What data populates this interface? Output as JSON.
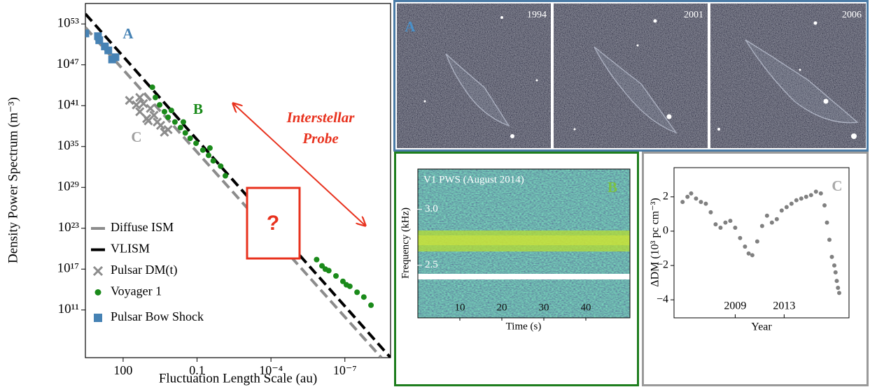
{
  "chart_data": [
    {
      "type": "scatter",
      "xlabel": "Fluctuation Length Scale (au)",
      "ylabel": "Density Power Spectrum (m⁻³)",
      "xlog": true,
      "ylog": true,
      "xlim": [
        3400,
        1.4e-09
      ],
      "ylim": [
        10000.0,
        1e+56
      ],
      "xticks": [
        100,
        0.1,
        {
          "value": 0.0001,
          "label": "10⁻⁴"
        },
        {
          "value": 1e-07,
          "label": "10⁻⁷"
        }
      ],
      "yticks": [
        {
          "value": 100000000000.0,
          "label": "10¹¹"
        },
        {
          "value": 1e+17,
          "label": "10¹⁷"
        },
        {
          "value": 1e+23,
          "label": "10²³"
        },
        {
          "value": 1e+29,
          "label": "10²⁹"
        },
        {
          "value": 1e+35,
          "label": "10³⁵"
        },
        {
          "value": 1e+41,
          "label": "10⁴¹"
        },
        {
          "value": 1e+47,
          "label": "10⁴⁷"
        },
        {
          "value": 1e+53,
          "label": "10⁵³"
        }
      ],
      "legend": "lower left",
      "lines": [
        {
          "name": "Diffuse ISM",
          "color": "#8c8c8c",
          "x": [
            3400,
            3.3e-09
          ],
          "values": [
            3e+52,
            10000.0
          ]
        },
        {
          "name": "VLISM",
          "color": "#000000",
          "x": [
            3400,
            1.4e-09
          ],
          "values": [
            3e+54,
            10000.0
          ]
        }
      ],
      "series": [
        {
          "name": "Pulsar DM(t)",
          "marker": "x",
          "color": "#8c8c8c",
          "x": [
            55,
            29,
            21,
            15,
            11,
            7.8,
            5.6,
            4.1,
            3.0,
            2.1,
            1.5,
            21,
            9.5
          ],
          "values": [
            6e+41,
            1.3e+41,
            1.3e+40,
            2e+41,
            1.3e+39,
            4e+40,
            4e+39,
            4e+38,
            1.3e+38,
            1.3e+37,
            3e+37,
            1.6e+42,
            6e+38
          ]
        },
        {
          "name": "Voyager 1",
          "marker": "circle",
          "color": "#1a8a1a",
          "x": [
            6.5,
            4.9,
            3.3,
            2.1,
            1.5,
            0.79,
            0.47,
            0.3,
            0.19,
            0.11,
            0.058,
            0.034,
            0.022,
            0.011,
            0.0071,
            1.1,
            0.36,
            0.03,
            1.4e-06,
            8.5e-07,
            4.5e-07,
            2.3e-07,
            1.2e-07,
            6.3e-08,
            3.2e-08,
            1.7e-08,
            8.7e-09,
            6.2e-07,
            8.7e-08
          ],
          "values": [
            5e+43,
            1.6e+42,
            1.3e+41,
            1.3e+40,
            2e+39,
            4e+38,
            6e+37,
            1e+37,
            1.6e+36,
            3e+35,
            3e+34,
            5e+33,
            8e+32,
            1.3e+32,
            5e+30,
            2e+40,
            4e+38,
            6e+34,
            2.5e+18,
            3e+17,
            6e+16,
            1e+16,
            1600000000000000.0,
            300000000000000.0,
            40000000000000.0,
            8000000000000.0,
            500000000000.0,
            1e+17,
            500000000000000.0
          ]
        },
        {
          "name": "Pulsar Bow Shock",
          "marker": "square",
          "color": "#4682b4",
          "x": [
            3400,
            1050,
            930,
            550,
            400,
            280,
            205
          ],
          "values": [
            4e+51,
            1.6e+51,
            4e+50,
            5e+49,
            1.3e+49,
            6e+47,
            1.3e+48
          ]
        }
      ],
      "annotations": [
        {
          "text": "A",
          "color": "#4682b4"
        },
        {
          "text": "B",
          "color": "#1a8a1a"
        },
        {
          "text": "C",
          "color": "#a0a0a0"
        }
      ],
      "probe": {
        "lines": [
          "Interstellar",
          "Probe"
        ],
        "color": "#e8321e"
      },
      "unknown": "?"
    },
    {
      "type": "spectrogram",
      "title": "V1 PWS (August 2014)",
      "label": "B",
      "xlabel": "Time (s)",
      "ylabel": "Frequency (kHz)",
      "xlim": [
        0,
        50.5
      ],
      "ylim": [
        2.03,
        3.36
      ],
      "xticks": [
        10,
        20,
        30,
        40
      ],
      "yticks": [
        {
          "value": 3,
          "label": "3.0"
        },
        {
          "value": 2.5,
          "label": "2.5"
        }
      ]
    },
    {
      "type": "scatter",
      "label": "C",
      "xlabel": "Year",
      "ylabel": "ΔDM (10³ pc cm⁻³)",
      "color": "#808080",
      "xlim": [
        2004,
        2018.3
      ],
      "ylim": [
        -5.05,
        3.7
      ],
      "xticks": [
        2009,
        2013
      ],
      "yticks": [
        2,
        0,
        {
          "value": -2,
          "label": "−2"
        },
        {
          "value": -4,
          "label": "−4"
        }
      ],
      "x": [
        2004.7,
        2005.1,
        2005.4,
        2005.8,
        2006.2,
        2006.6,
        2007.0,
        2007.4,
        2007.8,
        2008.2,
        2008.6,
        2009.0,
        2009.4,
        2009.8,
        2010.1,
        2010.4,
        2010.8,
        2011.2,
        2011.6,
        2012.0,
        2012.4,
        2012.8,
        2013.2,
        2013.6,
        2014.0,
        2014.4,
        2014.8,
        2015.2,
        2015.6,
        2016.0,
        2016.3,
        2016.5,
        2016.7,
        2016.9,
        2017.1,
        2017.2,
        2017.3,
        2017.4,
        2017.5
      ],
      "values": [
        1.7,
        2.0,
        2.2,
        1.9,
        1.7,
        1.6,
        1.1,
        0.4,
        0.2,
        0.5,
        0.6,
        0.2,
        -0.4,
        -0.9,
        -1.3,
        -1.4,
        -0.6,
        0.3,
        0.9,
        0.5,
        0.7,
        1.2,
        1.4,
        1.6,
        1.8,
        1.9,
        2.0,
        2.1,
        2.3,
        2.2,
        1.5,
        0.5,
        -0.5,
        -1.5,
        -2.0,
        -2.4,
        -2.9,
        -3.3,
        -3.6
      ]
    }
  ],
  "panel_a": {
    "label": "A",
    "years": [
      "1994",
      "2001",
      "2006"
    ]
  }
}
